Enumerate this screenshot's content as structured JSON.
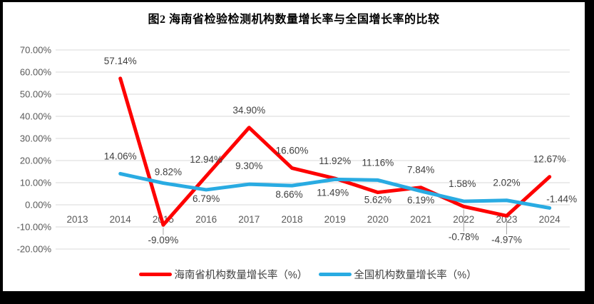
{
  "window": {
    "background": "#000000",
    "chart_background": "#ffffff"
  },
  "title": "图2 海南省检验检测机构数量增长率与全国增长率的比较",
  "chart_data": {
    "type": "line",
    "title": "图2 海南省检验检测机构数量增长率与全国增长率的比较",
    "categories": [
      "2013",
      "2014",
      "2015",
      "2016",
      "2017",
      "2018",
      "2019",
      "2020",
      "2021",
      "2022",
      "2023",
      "2024"
    ],
    "ylim": [
      -20,
      70
    ],
    "ytick_step": 10,
    "ytick_labels": [
      "70.00%",
      "60.00%",
      "50.00%",
      "40.00%",
      "30.00%",
      "20.00%",
      "10.00%",
      "0.00%",
      "-10.00%",
      "-20.00%"
    ],
    "grid": true,
    "legend_position": "bottom",
    "gridline_color": "#d9d9d9",
    "axis_text_color": "#595959",
    "data_label_color": "#3f3f3f",
    "leader_line_color": "#a6a6a6",
    "series": [
      {
        "name": "海南省机构数量增长率（%）",
        "color": "#fe0000",
        "values": [
          null,
          57.14,
          -9.09,
          12.94,
          34.9,
          16.6,
          11.92,
          5.62,
          7.84,
          -0.78,
          -4.97,
          12.67
        ],
        "labels": [
          "",
          "57.14%",
          "-9.09%",
          "12.94%",
          "34.90%",
          "16.60%",
          "11.92%",
          "5.62%",
          "7.84%",
          "-0.78%",
          "-4.97%",
          "12.67%"
        ],
        "label_offsets": [
          [
            0,
            0
          ],
          [
            0,
            -20
          ],
          [
            0,
            26
          ],
          [
            0,
            -19
          ],
          [
            0,
            -20
          ],
          [
            0,
            -20
          ],
          [
            0,
            -20
          ],
          [
            0,
            15
          ],
          [
            0,
            -20
          ],
          [
            0,
            47
          ],
          [
            0,
            38
          ],
          [
            0,
            -20
          ]
        ],
        "leader_points": [
          2,
          9,
          10
        ]
      },
      {
        "name": "全国机构数量增长率（%）",
        "color": "#29abe2",
        "values": [
          null,
          14.06,
          9.82,
          6.79,
          9.3,
          8.66,
          11.49,
          11.16,
          6.19,
          1.58,
          2.02,
          -1.44
        ],
        "labels": [
          "",
          "14.06%",
          "9.82%",
          "6.79%",
          "9.30%",
          "8.66%",
          "11.49%",
          "11.16%",
          "6.19%",
          "1.58%",
          "2.02%",
          "-1.44%"
        ],
        "label_offsets": [
          [
            0,
            0
          ],
          [
            0,
            -20
          ],
          [
            7,
            -11
          ],
          [
            0,
            17
          ],
          [
            0,
            -21
          ],
          [
            -4,
            17
          ],
          [
            -3,
            23
          ],
          [
            0,
            -20
          ],
          [
            0,
            17
          ],
          [
            -2,
            -20
          ],
          [
            0,
            -20
          ],
          [
            17,
            -8
          ]
        ],
        "leader_points": []
      }
    ]
  }
}
